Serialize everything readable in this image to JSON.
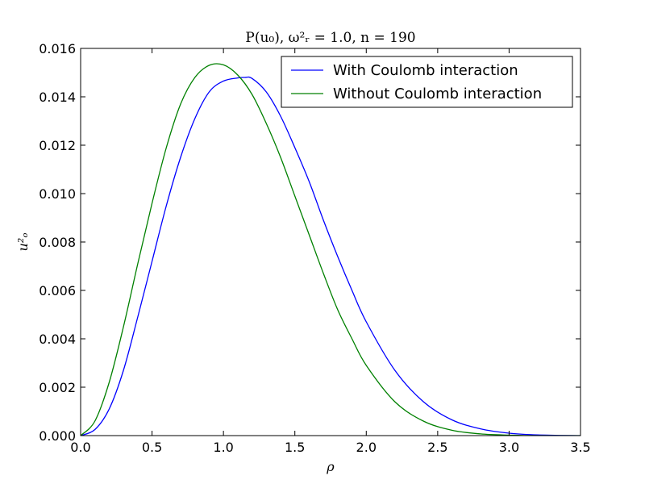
{
  "chart_data": {
    "type": "line",
    "title": "P(u₀), ω²ᵣ = 1.0, n = 190",
    "xlabel": "ρ",
    "ylabel": "u²ₒ",
    "xlim": [
      0.0,
      3.5
    ],
    "ylim": [
      0.0,
      0.016
    ],
    "x_ticks": [
      "0.0",
      "0.5",
      "1.0",
      "1.5",
      "2.0",
      "2.5",
      "3.0",
      "3.5"
    ],
    "y_ticks": [
      "0.000",
      "0.002",
      "0.004",
      "0.006",
      "0.008",
      "0.010",
      "0.012",
      "0.014",
      "0.016"
    ],
    "grid": false,
    "legend_position": "top-right",
    "series": [
      {
        "name": "With Coulomb interaction",
        "color": "#0000ff",
        "x": [
          0.0,
          0.1,
          0.2,
          0.3,
          0.4,
          0.5,
          0.6,
          0.7,
          0.8,
          0.9,
          1.0,
          1.1,
          1.15,
          1.2,
          1.3,
          1.4,
          1.5,
          1.6,
          1.7,
          1.8,
          1.9,
          2.0,
          2.2,
          2.4,
          2.6,
          2.8,
          3.0,
          3.2,
          3.5
        ],
        "y": [
          0.0,
          0.00025,
          0.0011,
          0.0027,
          0.0049,
          0.0072,
          0.0095,
          0.0115,
          0.0131,
          0.0142,
          0.01465,
          0.01478,
          0.0148,
          0.01476,
          0.0142,
          0.0132,
          0.0119,
          0.0105,
          0.0089,
          0.0074,
          0.006,
          0.0047,
          0.0027,
          0.0014,
          0.00065,
          0.00028,
          0.0001,
          3e-05,
          0.0
        ]
      },
      {
        "name": "Without Coulomb interaction",
        "color": "#008000",
        "x": [
          0.0,
          0.1,
          0.2,
          0.3,
          0.4,
          0.5,
          0.6,
          0.7,
          0.8,
          0.9,
          1.0,
          1.1,
          1.2,
          1.3,
          1.4,
          1.5,
          1.6,
          1.7,
          1.8,
          1.9,
          2.0,
          2.2,
          2.4,
          2.6,
          2.8,
          3.0,
          3.2,
          3.5
        ],
        "y": [
          0.0,
          0.0006,
          0.0022,
          0.0045,
          0.0071,
          0.0096,
          0.0119,
          0.0137,
          0.0148,
          0.0153,
          0.01532,
          0.0149,
          0.0141,
          0.0129,
          0.0115,
          0.0099,
          0.0083,
          0.0067,
          0.0052,
          0.004,
          0.0029,
          0.0014,
          0.0006,
          0.00022,
          7e-05,
          2e-05,
          0.0,
          0.0
        ]
      }
    ]
  }
}
